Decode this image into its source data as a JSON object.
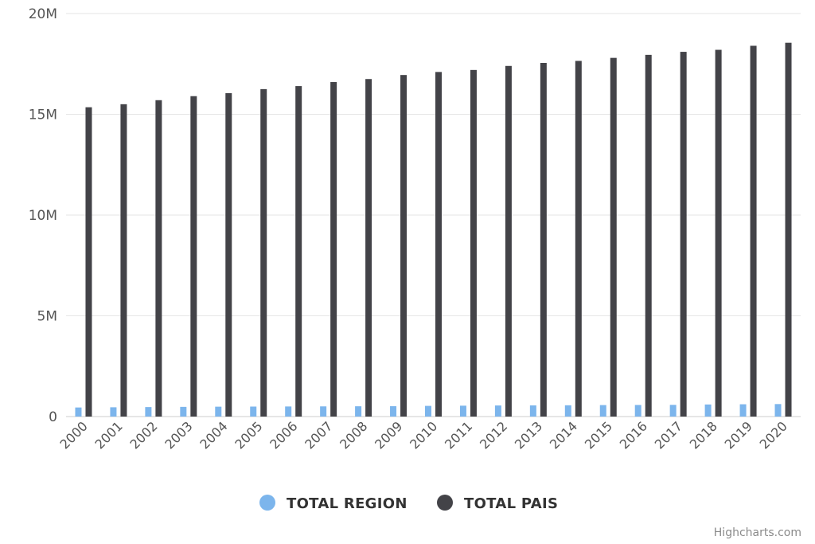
{
  "chart_data": {
    "type": "bar",
    "categories": [
      "2000",
      "2001",
      "2002",
      "2003",
      "2004",
      "2005",
      "2006",
      "2007",
      "2008",
      "2009",
      "2010",
      "2011",
      "2012",
      "2013",
      "2014",
      "2015",
      "2016",
      "2017",
      "2018",
      "2019",
      "2020"
    ],
    "series": [
      {
        "name": "TOTAL REGION",
        "color": "#7cb5ec",
        "values": [
          450000,
          460000,
          470000,
          480000,
          490000,
          495000,
          500000,
          505000,
          510000,
          515000,
          530000,
          540000,
          550000,
          555000,
          560000,
          570000,
          575000,
          580000,
          600000,
          610000,
          620000
        ]
      },
      {
        "name": "TOTAL PAIS",
        "color": "#434348",
        "values": [
          15350000,
          15500000,
          15700000,
          15900000,
          16050000,
          16250000,
          16400000,
          16600000,
          16750000,
          16950000,
          17100000,
          17200000,
          17400000,
          17550000,
          17650000,
          17800000,
          17950000,
          18100000,
          18200000,
          18400000,
          18550000
        ]
      }
    ],
    "yticks": [
      {
        "value": 0,
        "label": "0"
      },
      {
        "value": 5000000,
        "label": "5M"
      },
      {
        "value": 10000000,
        "label": "10M"
      },
      {
        "value": 15000000,
        "label": "15M"
      },
      {
        "value": 20000000,
        "label": "20M"
      }
    ],
    "ylim": [
      0,
      20000000
    ],
    "grid": true,
    "legend_position": "bottom-center"
  },
  "credits": "Highcharts.com"
}
